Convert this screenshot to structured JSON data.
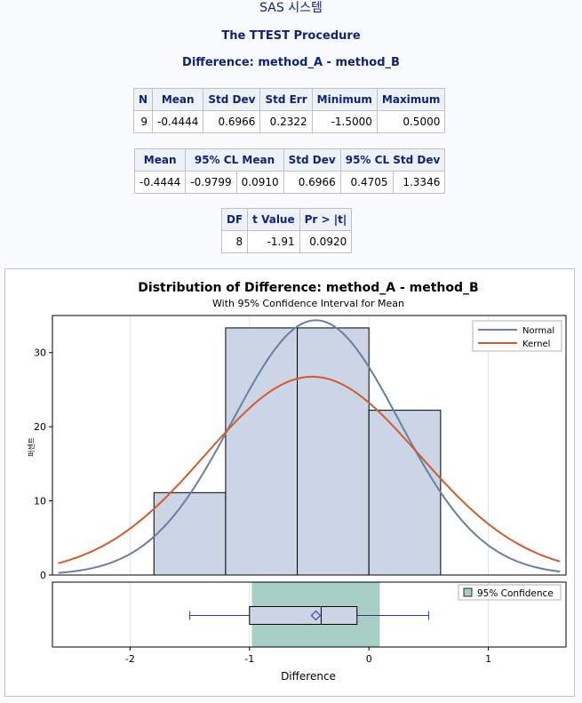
{
  "header": {
    "system_title": "SAS 시스템",
    "procedure_title": "The TTEST Procedure",
    "variable_title": "Difference: method_A - method_B"
  },
  "table1": {
    "columns": [
      "N",
      "Mean",
      "Std Dev",
      "Std Err",
      "Minimum",
      "Maximum"
    ],
    "row": [
      "9",
      "-0.4444",
      "0.6966",
      "0.2322",
      "-1.5000",
      "0.5000"
    ]
  },
  "table2": {
    "columns": [
      "Mean",
      "95% CL Mean",
      "Std Dev",
      "95% CL Std Dev"
    ],
    "row": [
      "-0.4444",
      "-0.9799",
      "0.0910",
      "0.6966",
      "0.4705",
      "1.3346"
    ]
  },
  "table3": {
    "columns": [
      "DF",
      "t Value",
      "Pr > |t|"
    ],
    "row": [
      "8",
      "-1.91",
      "0.0920"
    ]
  },
  "chart_data": {
    "type": "bar",
    "title": "Distribution of Difference: method_A - method_B",
    "subtitle": "With 95% Confidence Interval for Mean",
    "xlabel": "Difference",
    "ylabel": "퍼센트",
    "xlim": [
      -2.65,
      1.65
    ],
    "ylim": [
      0,
      35
    ],
    "xticks": [
      -2,
      -1,
      0,
      1
    ],
    "yticks": [
      0,
      10,
      20,
      30
    ],
    "grid": true,
    "legend_placement": "top-right",
    "bins": [
      {
        "x0": -1.8,
        "x1": -1.2,
        "value": 11.11
      },
      {
        "x0": -1.2,
        "x1": -0.6,
        "value": 33.33
      },
      {
        "x0": -0.6,
        "x1": 0.0,
        "value": 33.33
      },
      {
        "x0": 0.0,
        "x1": 0.6,
        "value": 22.22
      }
    ],
    "series": [
      {
        "name": "Normal",
        "mean": -0.4444,
        "sd": 0.6966,
        "color": "#667fa2"
      },
      {
        "name": "Kernel",
        "mean": -0.4744,
        "sd": 0.895,
        "color": "#d05b2c"
      }
    ],
    "boxplot": {
      "min": -1.5,
      "q1": -1.0,
      "median": -0.4,
      "q3": -0.1,
      "max": 0.5,
      "mean": -0.4444,
      "ci_lower": -0.9799,
      "ci_upper": 0.091,
      "ci_label": "95% Confidence"
    },
    "colors": {
      "bar_fill": "#cbd5e6",
      "bar_stroke": "#000000",
      "ci_fill": "#a7cfc6",
      "box_stroke": "#1f3aa0",
      "grid": "#e3e3e3"
    }
  }
}
